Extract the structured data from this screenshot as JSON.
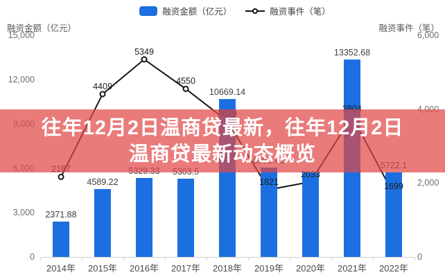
{
  "legend": {
    "bar_label": "融资金额（亿元）",
    "line_label": "融资事件（笔）"
  },
  "axes": {
    "left": {
      "title": "融资金额（亿元）",
      "ticks": [
        "15,000",
        "12,000",
        "9,000",
        "6,000",
        "3,000",
        "0"
      ]
    },
    "right": {
      "title": "融资事件（笔）",
      "ticks": [
        "6,000",
        "4,000",
        "2,000",
        "0"
      ]
    }
  },
  "overlay": {
    "title_line1": "往年12月2日温商贷最新，往年12月2日",
    "title_line2": "温商贷最新动态概览",
    "band_color": "#e04848"
  },
  "colors": {
    "bar": "#1c6fe0",
    "line": "#141414",
    "marker_fill": "#ffffff"
  },
  "chart_data": {
    "type": "bar+line combo",
    "categories": [
      "2014年",
      "2015年",
      "2016年",
      "2017年",
      "2018年",
      "2019年",
      "2020年",
      "2021年",
      "2022年"
    ],
    "series": [
      {
        "name": "融资金额（亿元）",
        "type": "bar",
        "axis": "left",
        "values": [
          2371.88,
          4589.22,
          5329.33,
          5303.5,
          10669.14,
          6055.61,
          5735,
          13352.68,
          5722.1
        ]
      },
      {
        "name": "融资事件（笔）",
        "type": "line",
        "axis": "right",
        "values": [
          2167,
          4409,
          5349,
          4550,
          3679,
          1821,
          2033,
          3804,
          1699
        ]
      }
    ],
    "labels": {
      "bar": [
        "2371.88",
        "4589.22",
        "5329.33",
        "5303.5",
        "10669.14",
        "6055.61",
        "",
        "13352.68",
        "5722.1"
      ],
      "line": [
        "2167",
        "4409",
        "5349",
        "4550",
        "3679",
        "1821",
        "2033",
        "3804",
        "1699"
      ]
    },
    "left_axis_label": "融资金额（亿元）",
    "right_axis_label": "融资事件（笔）",
    "left_ylim": [
      0,
      15000
    ],
    "right_ylim": [
      0,
      6000
    ],
    "legend_position": "top",
    "grid": false
  }
}
